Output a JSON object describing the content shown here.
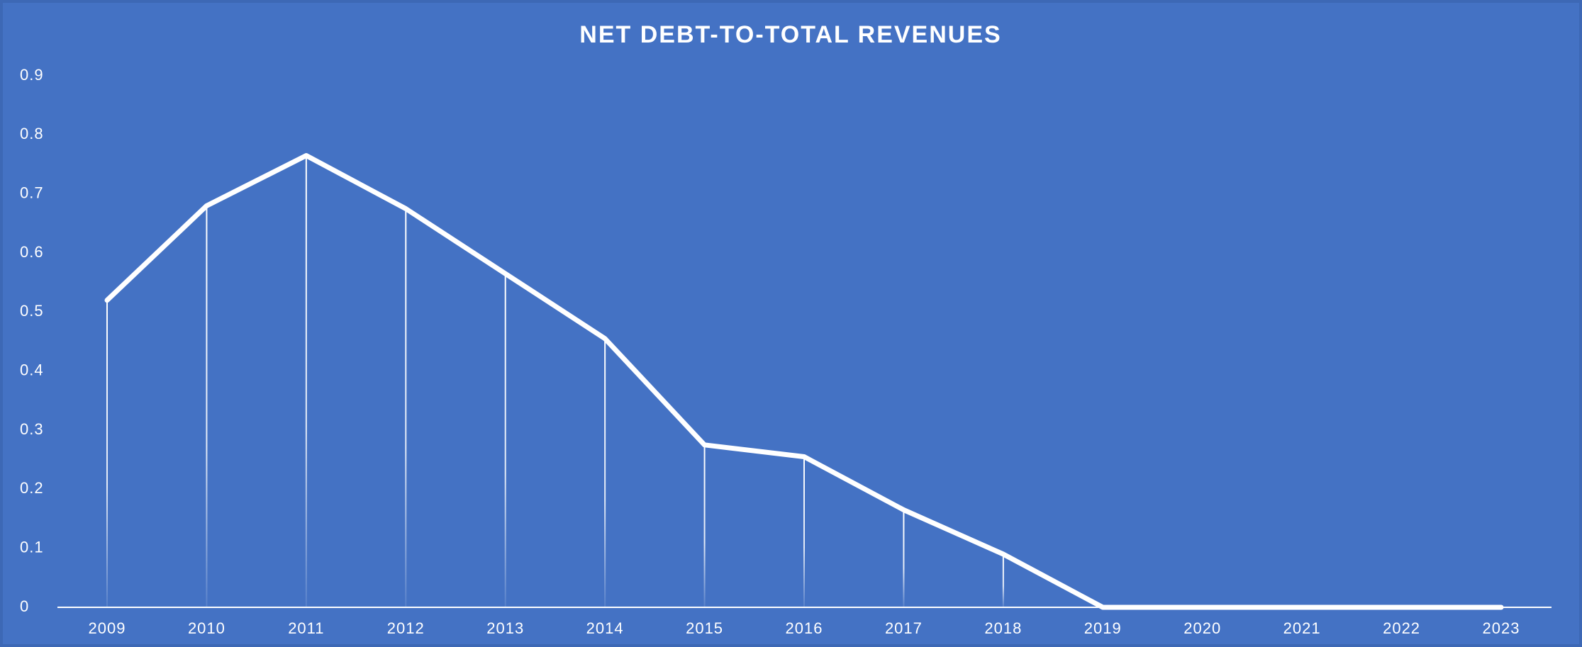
{
  "chart_data": {
    "type": "line",
    "title": "NET DEBT-TO-TOTAL REVENUES",
    "categories": [
      "2009",
      "2010",
      "2011",
      "2012",
      "2013",
      "2014",
      "2015",
      "2016",
      "2017",
      "2018",
      "2019",
      "2020",
      "2021",
      "2022",
      "2023"
    ],
    "series": [
      {
        "color": "#ffffff",
        "values": [
          0.52,
          0.68,
          0.765,
          0.675,
          0.565,
          0.455,
          0.275,
          0.255,
          0.165,
          0.09,
          0,
          0,
          0,
          0,
          0
        ]
      }
    ],
    "ylim": [
      0,
      0.9
    ],
    "yticks": [
      0,
      0.1,
      0.2,
      0.3,
      0.4,
      0.5,
      0.6,
      0.7,
      0.8,
      0.9
    ],
    "grid": false,
    "drop_lines": true
  }
}
